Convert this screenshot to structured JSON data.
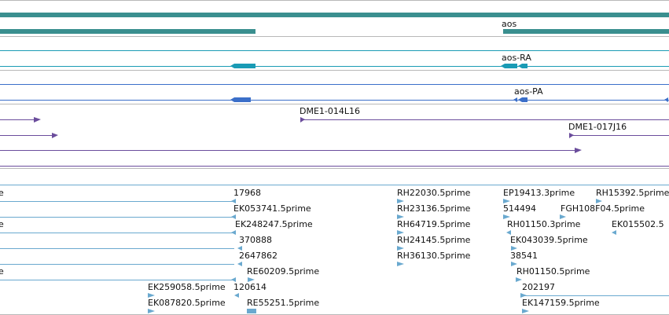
{
  "colors": {
    "gene": "#3a8f8f",
    "transcript": "#1a9bb5",
    "cds": "#3b6fc9",
    "clone": "#6b4d9c",
    "est": "#6aa9cf",
    "separator": "#b8b8b8"
  },
  "tracks": {
    "gene_track": {
      "labels": [
        "aos"
      ]
    },
    "transcript_track": {
      "labels": [
        "aos-RA"
      ]
    },
    "protein_track": {
      "labels": [
        "aos-PA"
      ]
    },
    "clone_track": {
      "labels": [
        "DME1-014L16",
        "DME1-017J16"
      ]
    },
    "est_track": {
      "labels": [
        "e",
        "17968",
        "RH22030.5prime",
        "EP19413.3prime",
        "RH15392.5prime",
        "EK053741.5prime",
        "RH23136.5prime",
        "514494",
        "FGH108F04.5prime",
        "e",
        "EK248247.5prime",
        "RH64719.5prime",
        "RH01150.3prime",
        "EK015502.5",
        "370888",
        "RH24145.5prime",
        "EK043039.5prime",
        "2647862",
        "RH36130.5prime",
        "38541",
        "e",
        "RE60209.5prime",
        "RH01150.5prime",
        "EK259058.5prime",
        "120614",
        "202197",
        "EK087820.5prime",
        "RE55251.5prime",
        "EK147159.5prime"
      ]
    }
  }
}
